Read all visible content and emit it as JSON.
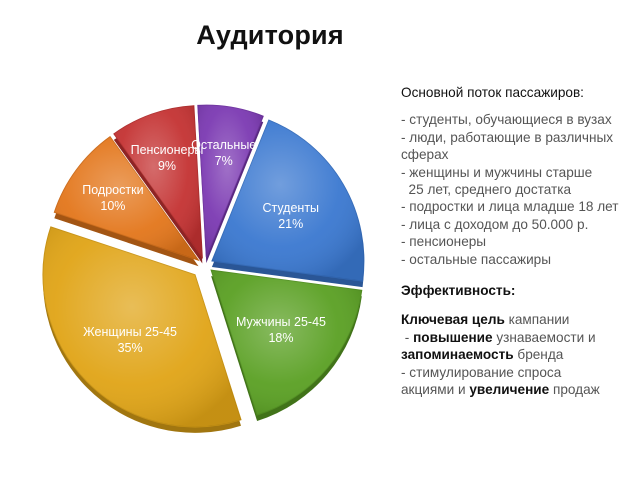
{
  "title": "Аудитория",
  "chart_data": {
    "type": "pie",
    "style": "exploded-3d",
    "slices": [
      {
        "label": "Студенты",
        "value": 21,
        "pct_label": "21%",
        "color": "#3a78d0"
      },
      {
        "label": "Мужчины 25-45",
        "value": 18,
        "pct_label": "18%",
        "color": "#5aa023"
      },
      {
        "label": "Женщины 25-45",
        "value": 35,
        "pct_label": "35%",
        "color": "#e0a416"
      },
      {
        "label": "Подростки",
        "value": 10,
        "pct_label": "10%",
        "color": "#e3761b"
      },
      {
        "label": "Пенсионеры",
        "value": 9,
        "pct_label": "9%",
        "color": "#c43232"
      },
      {
        "label": "Остальные",
        "value": 7,
        "pct_label": "7%",
        "color": "#7b39b2"
      }
    ]
  },
  "panel": {
    "audience_heading": "Основной поток пассажиров:",
    "audience_items": [
      "- студенты, обучающиеся в вузах",
      "- люди, работающие в различных",
      "сферах",
      "- женщины и мужчины старше",
      "  25 лет, среднего достатка",
      "- подростки и лица младше 18 лет",
      "- лица с доходом до 50.000 р.",
      "- пенсионеры",
      "- остальные пассажиры"
    ],
    "efficiency_heading": "Эффективность:",
    "efficiency_lines": [
      {
        "id": "goal-line",
        "segments": [
          {
            "text": "Ключевая цель",
            "bold": true
          },
          {
            "text": " кампании",
            "bold": false
          }
        ]
      },
      {
        "id": "awareness-line",
        "segments": [
          {
            "text": " - ",
            "bold": false
          },
          {
            "text": "повышение",
            "bold": true
          },
          {
            "text": " узнаваемости и",
            "bold": false
          }
        ]
      },
      {
        "id": "memorability-line",
        "segments": [
          {
            "text": "запоминаемость",
            "bold": true
          },
          {
            "text": " бренда",
            "bold": false
          }
        ]
      },
      {
        "id": "stimulus-line",
        "segments": [
          {
            "text": "- стимулирование спроса",
            "bold": false
          }
        ]
      },
      {
        "id": "sales-line",
        "segments": [
          {
            "text": "акциями и ",
            "bold": false
          },
          {
            "text": "увеличение",
            "bold": true
          },
          {
            "text": " продаж",
            "bold": false
          }
        ]
      }
    ]
  }
}
